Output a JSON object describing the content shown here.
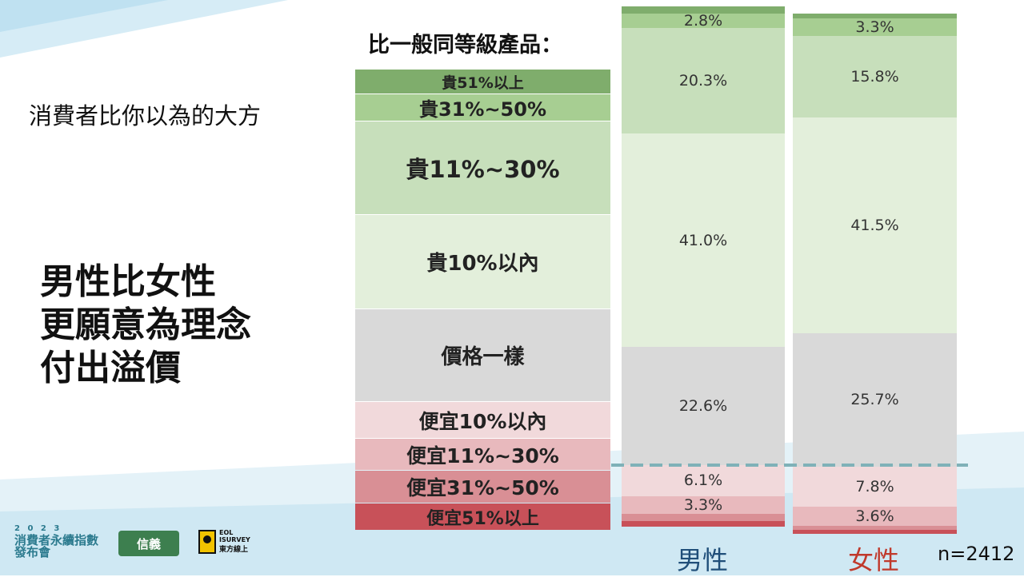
{
  "subtitle": "消費者比你以為的大方",
  "headline": [
    "男性比女性",
    "更願意為理念",
    "付出溢價"
  ],
  "legend_title": "比一般同等級產品：",
  "legend": [
    "貴51%以上",
    "貴31%~50%",
    "貴11%~30%",
    "貴10%以內",
    "價格一樣",
    "便宜10%以內",
    "便宜11%~30%",
    "便宜31%~50%",
    "便宜51%以上"
  ],
  "colors": {
    "gt51": "#7fad6c",
    "c31_50": "#a7ce92",
    "c11_30": "#c7dfbb",
    "c10": "#e3efdb",
    "same": "#d9d9d9",
    "ch10": "#f1d9db",
    "ch11_30": "#e8b9bd",
    "ch31_50": "#d98f95",
    "ch51": "#c85159",
    "male_label": "#1f4e79",
    "female_label": "#c0392b",
    "divider": "#7fb1b8"
  },
  "chart_data": {
    "type": "bar",
    "stacked": true,
    "categories": [
      "男性",
      "女性"
    ],
    "series": [
      {
        "name": "貴51%以上",
        "values": [
          1.4,
          1.0
        ]
      },
      {
        "name": "貴31%~50%",
        "values": [
          2.8,
          3.3
        ]
      },
      {
        "name": "貴11%~30%",
        "values": [
          20.3,
          15.8
        ]
      },
      {
        "name": "貴10%以內",
        "values": [
          41.0,
          41.5
        ]
      },
      {
        "name": "價格一樣",
        "values": [
          22.6,
          25.7
        ]
      },
      {
        "name": "便宜10%以內",
        "values": [
          6.1,
          7.8
        ]
      },
      {
        "name": "便宜11%~30%",
        "values": [
          3.3,
          3.6
        ]
      },
      {
        "name": "便宜31%~50%",
        "values": [
          1.5,
          0.8
        ]
      },
      {
        "name": "便宜51%以上",
        "values": [
          1.0,
          0.8
        ]
      }
    ],
    "labels": {
      "male": [
        "",
        "2.8%",
        "20.3%",
        "41.0%",
        "22.6%",
        "6.1%",
        "3.3%",
        "",
        ""
      ],
      "female": [
        "",
        "3.3%",
        "15.8%",
        "41.5%",
        "25.7%",
        "7.8%",
        "3.6%",
        "",
        ""
      ]
    },
    "note": "n=2412"
  },
  "logos": {
    "year": "2 0 2 3",
    "event": "消費者永續指數",
    "event2": "發布會",
    "partner1": "信義",
    "partner2_en": "EOL ISURVEY",
    "partner2_zh": "東方線上"
  }
}
